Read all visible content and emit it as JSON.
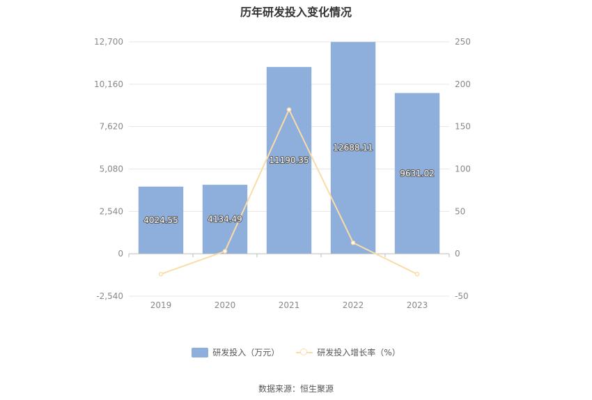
{
  "chart_data": {
    "type": "bar",
    "title": "历年研发投入变化情况",
    "categories": [
      "2019",
      "2020",
      "2021",
      "2022",
      "2023"
    ],
    "series": [
      {
        "name": "研发投入（万元）",
        "type": "bar",
        "axis": "left",
        "values": [
          4024.55,
          4134.49,
          11190.35,
          12688.11,
          9631.02
        ],
        "labels": [
          "4024.55",
          "4134.49",
          "11190.35",
          "12688.11",
          "9631.02"
        ]
      },
      {
        "name": "研发投入增长率（%）",
        "type": "line",
        "axis": "right",
        "values": [
          -24,
          3,
          170,
          13,
          -24
        ]
      }
    ],
    "y_left": {
      "min": -2540,
      "max": 12700,
      "ticks": [
        12700,
        10160,
        7620,
        5080,
        2540,
        0,
        -2540
      ],
      "tick_labels": [
        "12,700",
        "10,160",
        "7,620",
        "5,080",
        "2,540",
        "0",
        "-2,540"
      ]
    },
    "y_right": {
      "min": -50,
      "max": 250,
      "ticks": [
        250,
        200,
        150,
        100,
        50,
        0,
        -50
      ],
      "tick_labels": [
        "250",
        "200",
        "150",
        "100",
        "50",
        "0",
        "-50"
      ]
    },
    "colors": {
      "bar": "#8eaedb",
      "line": "#fbdca7",
      "grid": "#e6e6e6",
      "axis": "#bbbbbb"
    },
    "grid": true,
    "legend_position": "bottom"
  },
  "source": "数据来源：恒生聚源"
}
